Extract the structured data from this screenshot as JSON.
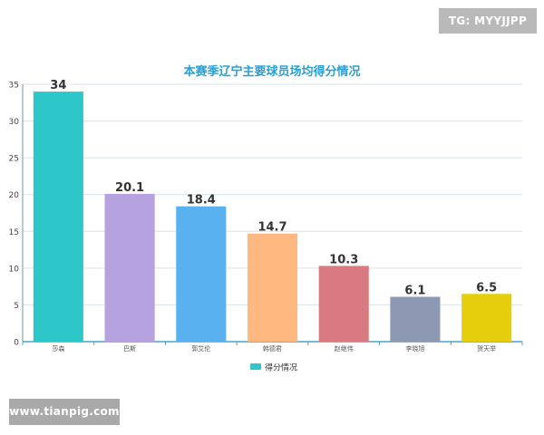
{
  "watermarks": {
    "top_right": "TG: MYYJJPP",
    "bottom_left": "www.tianpig.com"
  },
  "chart_data": {
    "type": "bar",
    "title": "本赛季辽宁主要球员场均得分情况",
    "xlabel": "",
    "ylabel": "",
    "categories": [
      "莎森",
      "巴斯",
      "郭艾伦",
      "韩德君",
      "赵继伟",
      "李晓旭",
      "贺天举"
    ],
    "series": [
      {
        "name": "得分情况",
        "values": [
          34,
          20.1,
          18.4,
          14.7,
          10.3,
          6.1,
          6.5
        ],
        "colors": [
          "#2ec7c9",
          "#b6a2de",
          "#5ab1ef",
          "#ffb980",
          "#d87a80",
          "#8d98b3",
          "#e5cf0d"
        ]
      }
    ],
    "ylim": [
      0,
      35
    ],
    "yticks": [
      0,
      5,
      10,
      15,
      20,
      25,
      30,
      35
    ],
    "grid": true,
    "legend": {
      "position": "bottom-center",
      "color": "#2ec7c9"
    },
    "title_color": "#2a9fd6"
  }
}
